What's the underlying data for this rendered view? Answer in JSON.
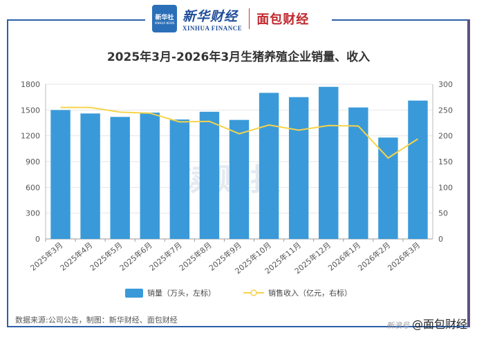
{
  "header": {
    "logo_text": "新华社",
    "logo_sub": "XINHUA NEWS",
    "brand_cn": "新华财经",
    "brand_en": "XINHUA FINANCE",
    "brand2": "面包财经"
  },
  "title": "2025年3月-2026年3月生猪养殖企业销量、收入",
  "watermark": "读财报",
  "legend": {
    "bar": "销量（万头，左标）",
    "line": "销售收入（亿元，右标）"
  },
  "source": "数据来源:公司公告，制图：新华财经、面包财经",
  "credit_prefix": "新浪号",
  "credit": "@面包财经",
  "colors": {
    "bar": "#3a9ad9",
    "line": "#f7d34a"
  },
  "chart_data": {
    "type": "bar",
    "title": "2025年3月-2026年3月生猪养殖企业销量、收入",
    "categories": [
      "2025年3月",
      "2025年4月",
      "2025年5月",
      "2025年6月",
      "2025年7月",
      "2025年8月",
      "2025年9月",
      "2025年10月",
      "2025年11月",
      "2025年12月",
      "2026年1月",
      "2026年2月",
      "2026年3月"
    ],
    "series": [
      {
        "name": "销量（万头，左标）",
        "type": "bar",
        "axis": "left",
        "values": [
          1500,
          1460,
          1420,
          1470,
          1390,
          1480,
          1385,
          1700,
          1650,
          1770,
          1530,
          1180,
          1610
        ]
      },
      {
        "name": "销售收入（亿元，右标）",
        "type": "line",
        "axis": "right",
        "values": [
          255,
          255,
          246,
          244,
          227,
          228,
          204,
          221,
          211,
          220,
          219,
          157,
          194
        ]
      }
    ],
    "y_left": {
      "lim": [
        0,
        1800
      ],
      "ticks": [
        0,
        300,
        600,
        900,
        1200,
        1500,
        1800
      ]
    },
    "y_right": {
      "lim": [
        0,
        300
      ],
      "ticks": [
        0,
        50,
        100,
        150,
        200,
        250,
        300
      ]
    },
    "grid": true,
    "legend_position": "bottom"
  }
}
